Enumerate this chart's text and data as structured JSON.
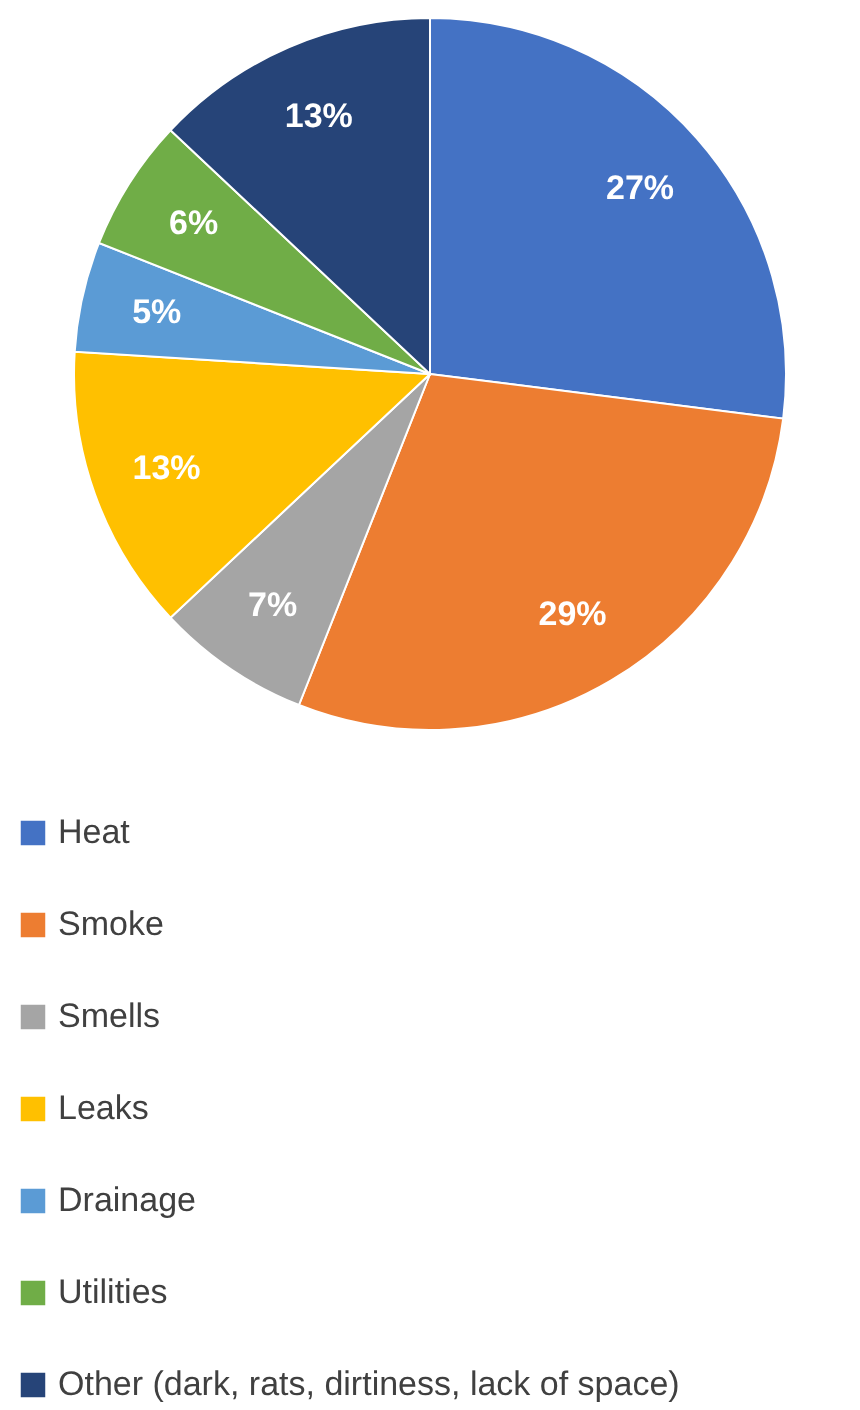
{
  "chart_data": {
    "type": "pie",
    "categories": [
      "Heat",
      "Smoke",
      "Smells",
      "Leaks",
      "Drainage",
      "Utilities",
      "Other (dark, rats, dirtiness, lack of space)"
    ],
    "values": [
      27,
      29,
      7,
      13,
      5,
      6,
      13
    ],
    "colors": [
      "#4472c4",
      "#ed7d31",
      "#a5a5a5",
      "#ffc000",
      "#5b9bd5",
      "#70ad47",
      "#264478"
    ],
    "value_labels": [
      "27%",
      "29%",
      "7%",
      "13%",
      "5%",
      "6%",
      "13%"
    ],
    "legend": "bottom"
  }
}
